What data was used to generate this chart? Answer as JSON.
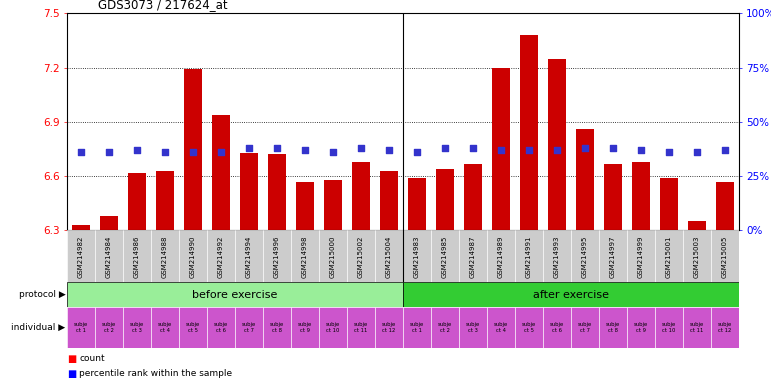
{
  "title": "GDS3073 / 217624_at",
  "samples": [
    "GSM214982",
    "GSM214984",
    "GSM214986",
    "GSM214988",
    "GSM214990",
    "GSM214992",
    "GSM214994",
    "GSM214996",
    "GSM214998",
    "GSM215000",
    "GSM215002",
    "GSM215004",
    "GSM214983",
    "GSM214985",
    "GSM214987",
    "GSM214989",
    "GSM214991",
    "GSM214993",
    "GSM214995",
    "GSM214997",
    "GSM214999",
    "GSM215001",
    "GSM215003",
    "GSM215005"
  ],
  "count_values": [
    6.33,
    6.38,
    6.62,
    6.63,
    7.19,
    6.94,
    6.73,
    6.72,
    6.57,
    6.58,
    6.68,
    6.63,
    6.59,
    6.64,
    6.67,
    7.2,
    7.38,
    7.25,
    6.86,
    6.67,
    6.68,
    6.59,
    6.35,
    6.57
  ],
  "percentile_values": [
    36,
    36,
    37,
    36,
    36,
    36,
    38,
    38,
    37,
    36,
    38,
    37,
    36,
    38,
    38,
    37,
    37,
    37,
    38,
    38,
    37,
    36,
    36,
    37
  ],
  "before_count": 12,
  "after_count": 12,
  "protocol_before": "before exercise",
  "protocol_after": "after exercise",
  "individuals_before": [
    "subje\nct 1",
    "subje\nct 2",
    "subje\nct 3",
    "subje\nct 4",
    "subje\nct 5",
    "subje\nct 6",
    "subje\nct 7",
    "subje\nct 8",
    "subje\nct 9",
    "subje\nct 10",
    "subje\nct 11",
    "subje\nct 12"
  ],
  "individuals_after": [
    "subje\nct 1",
    "subje\nct 2",
    "subje\nct 3",
    "subje\nct 4",
    "subje\nct 5",
    "subje\nct 6",
    "subje\nct 7",
    "subje\nct 8",
    "subje\nct 9",
    "subje\nct 10",
    "subje\nct 11",
    "subje\nct 12"
  ],
  "ylim_left": [
    6.3,
    7.5
  ],
  "ylim_right": [
    0,
    100
  ],
  "yticks_left": [
    6.3,
    6.6,
    6.9,
    7.2,
    7.5
  ],
  "yticks_right": [
    0,
    25,
    50,
    75,
    100
  ],
  "bar_color": "#cc0000",
  "dot_color": "#3333cc",
  "before_color": "#99ee99",
  "after_color": "#33cc33",
  "individual_color": "#cc55cc",
  "bg_color": "#cccccc",
  "figsize": [
    7.71,
    3.84
  ],
  "dpi": 100
}
